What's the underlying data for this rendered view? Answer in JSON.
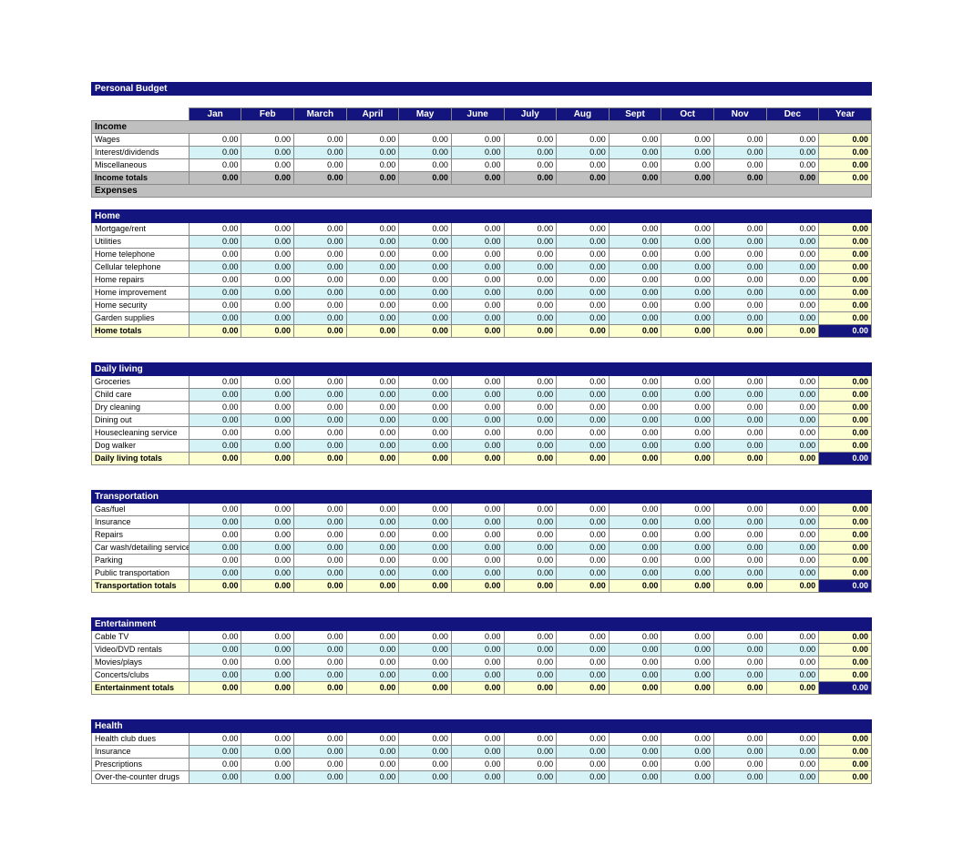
{
  "colors": {
    "header_bg": "#13147d",
    "header_fg": "#ffffff",
    "alt_row_bg": "#d5f3f7",
    "year_col_bg": "#feffd0",
    "totals_bg": "#feffd0",
    "gray_bg": "#bfbfbf",
    "border": "#888888",
    "white": "#ffffff"
  },
  "typography": {
    "font_family": "Arial",
    "base_size_pt": 7,
    "header_size_pt": 8,
    "header_weight": "bold"
  },
  "title": "Personal Budget",
  "months": [
    "Jan",
    "Feb",
    "March",
    "April",
    "May",
    "June",
    "July",
    "Aug",
    "Sept",
    "Oct",
    "Nov",
    "Dec"
  ],
  "year_label": "Year",
  "income_header": "Income",
  "expenses_header": "Expenses",
  "zero": "0.00",
  "sections": {
    "income": {
      "rows": [
        {
          "label": "Wages",
          "shade": "white"
        },
        {
          "label": "Interest/dividends",
          "shade": "cyan"
        },
        {
          "label": "Miscellaneous",
          "shade": "white"
        }
      ],
      "totals_label": "Income totals"
    },
    "home": {
      "header": "Home",
      "rows": [
        {
          "label": "Mortgage/rent",
          "shade": "white"
        },
        {
          "label": "Utilities",
          "shade": "cyan"
        },
        {
          "label": "Home telephone",
          "shade": "white"
        },
        {
          "label": "Cellular telephone",
          "shade": "cyan"
        },
        {
          "label": "Home repairs",
          "shade": "white"
        },
        {
          "label": "Home improvement",
          "shade": "cyan"
        },
        {
          "label": "Home security",
          "shade": "white"
        },
        {
          "label": "Garden supplies",
          "shade": "cyan"
        }
      ],
      "totals_label": "Home totals"
    },
    "daily": {
      "header": "Daily living",
      "rows": [
        {
          "label": "Groceries",
          "shade": "white"
        },
        {
          "label": "Child care",
          "shade": "cyan"
        },
        {
          "label": "Dry cleaning",
          "shade": "white"
        },
        {
          "label": "Dining out",
          "shade": "cyan"
        },
        {
          "label": "Housecleaning service",
          "shade": "white"
        },
        {
          "label": "Dog walker",
          "shade": "cyan"
        }
      ],
      "totals_label": "Daily living totals"
    },
    "transportation": {
      "header": "Transportation",
      "rows": [
        {
          "label": "Gas/fuel",
          "shade": "white"
        },
        {
          "label": "Insurance",
          "shade": "cyan"
        },
        {
          "label": "Repairs",
          "shade": "white"
        },
        {
          "label": "Car wash/detailing services",
          "shade": "cyan"
        },
        {
          "label": "Parking",
          "shade": "white"
        },
        {
          "label": "Public transportation",
          "shade": "cyan"
        }
      ],
      "totals_label": "Transportation totals"
    },
    "entertainment": {
      "header": "Entertainment",
      "rows": [
        {
          "label": "Cable TV",
          "shade": "white"
        },
        {
          "label": "Video/DVD rentals",
          "shade": "cyan"
        },
        {
          "label": "Movies/plays",
          "shade": "white"
        },
        {
          "label": "Concerts/clubs",
          "shade": "cyan"
        }
      ],
      "totals_label": "Entertainment totals"
    },
    "health": {
      "header": "Health",
      "rows": [
        {
          "label": "Health club dues",
          "shade": "white"
        },
        {
          "label": "Insurance",
          "shade": "cyan"
        },
        {
          "label": "Prescriptions",
          "shade": "white"
        },
        {
          "label": "Over-the-counter drugs",
          "shade": "cyan"
        }
      ],
      "totals_label": null
    }
  }
}
